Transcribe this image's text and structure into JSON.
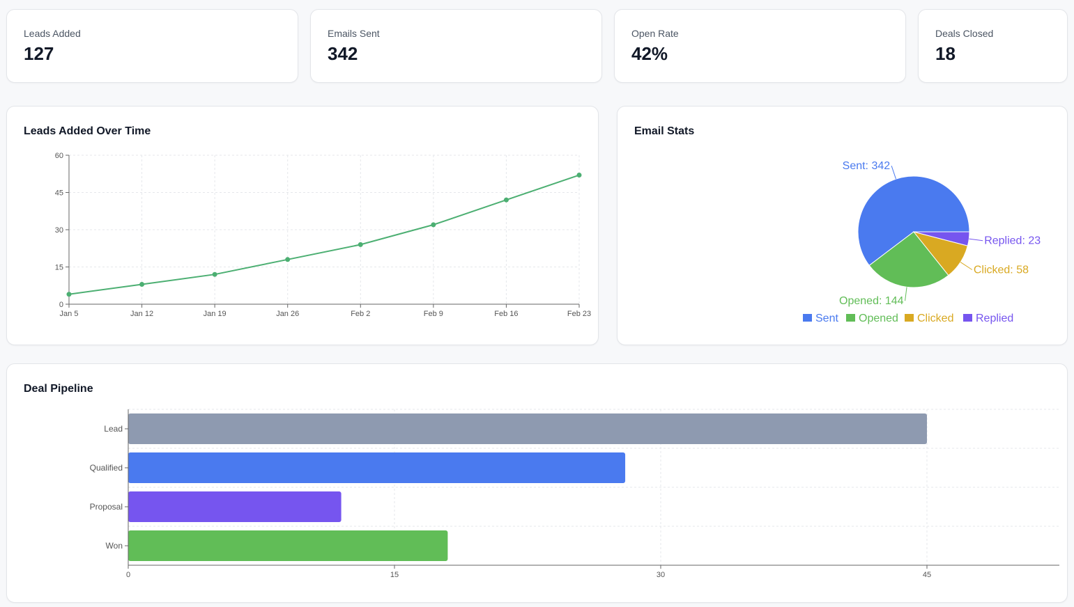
{
  "stats": [
    {
      "label": "Leads Added",
      "value": "127"
    },
    {
      "label": "Emails Sent",
      "value": "342"
    },
    {
      "label": "Open Rate",
      "value": "42%"
    },
    {
      "label": "Deals Closed",
      "value": "18"
    }
  ],
  "chart_data": [
    {
      "type": "line",
      "title": "Leads Added Over Time",
      "categories": [
        "Jan 5",
        "Jan 12",
        "Jan 19",
        "Jan 26",
        "Feb 2",
        "Feb 9",
        "Feb 16",
        "Feb 23"
      ],
      "values": [
        4,
        8,
        12,
        18,
        24,
        32,
        42,
        52
      ],
      "ylim": [
        0,
        60
      ],
      "yticks": [
        0,
        15,
        30,
        45,
        60
      ],
      "grid": true,
      "color": "#4caf72"
    },
    {
      "type": "pie",
      "title": "Email Stats",
      "categories": [
        "Sent",
        "Opened",
        "Clicked",
        "Replied"
      ],
      "values": [
        342,
        144,
        58,
        23
      ],
      "colors": [
        "#4a7aef",
        "#61bd57",
        "#d9a922",
        "#7655ef"
      ],
      "legend": "bottom",
      "labels": [
        "Sent: 342",
        "Opened: 144",
        "Clicked: 58",
        "Replied: 23"
      ]
    },
    {
      "type": "bar",
      "orientation": "horizontal",
      "title": "Deal Pipeline",
      "categories": [
        "Lead",
        "Qualified",
        "Proposal",
        "Won"
      ],
      "values": [
        45,
        28,
        12,
        18
      ],
      "colors": [
        "#8e9ab0",
        "#4a7aef",
        "#7655ef",
        "#61bd57"
      ],
      "xlim": [
        0,
        60
      ],
      "xticks": [
        0,
        15,
        30,
        45
      ],
      "grid": true
    }
  ]
}
